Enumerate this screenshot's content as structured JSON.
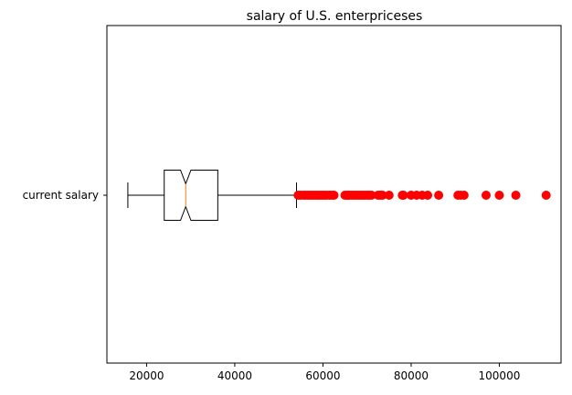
{
  "chart_data": {
    "type": "boxplot",
    "orientation": "horizontal",
    "title": "salary of U.S. enterpriceses",
    "xlabel": "",
    "ylabel": "",
    "xlim": [
      11000,
      114000
    ],
    "xticks": [
      20000,
      40000,
      60000,
      80000,
      100000
    ],
    "xtick_labels": [
      "20000",
      "40000",
      "60000",
      "80000",
      "100000"
    ],
    "categories": [
      "current salary"
    ],
    "notched": true,
    "box": {
      "whisker_low": 15750,
      "q1": 24000,
      "median": 28875,
      "notch_low": 27700,
      "notch_high": 30050,
      "q3": 36150,
      "whisker_high": 54000
    },
    "outliers": [
      54375,
      54900,
      55500,
      56000,
      56550,
      57000,
      57500,
      58000,
      58500,
      59000,
      59400,
      59900,
      60375,
      60900,
      61500,
      62000,
      62500,
      65000,
      65500,
      66000,
      66500,
      67000,
      67500,
      68000,
      68500,
      69000,
      69500,
      70000,
      70500,
      71000,
      72500,
      73000,
      73500,
      75000,
      78000,
      78250,
      80000,
      81250,
      82500,
      83750,
      86250,
      90625,
      91250,
      92000,
      97000,
      100000,
      103750,
      110625
    ],
    "colors": {
      "box": "#000000",
      "median": "#ff7f0e",
      "outlier": "#ff0000"
    },
    "grid": false,
    "legend": "none"
  }
}
